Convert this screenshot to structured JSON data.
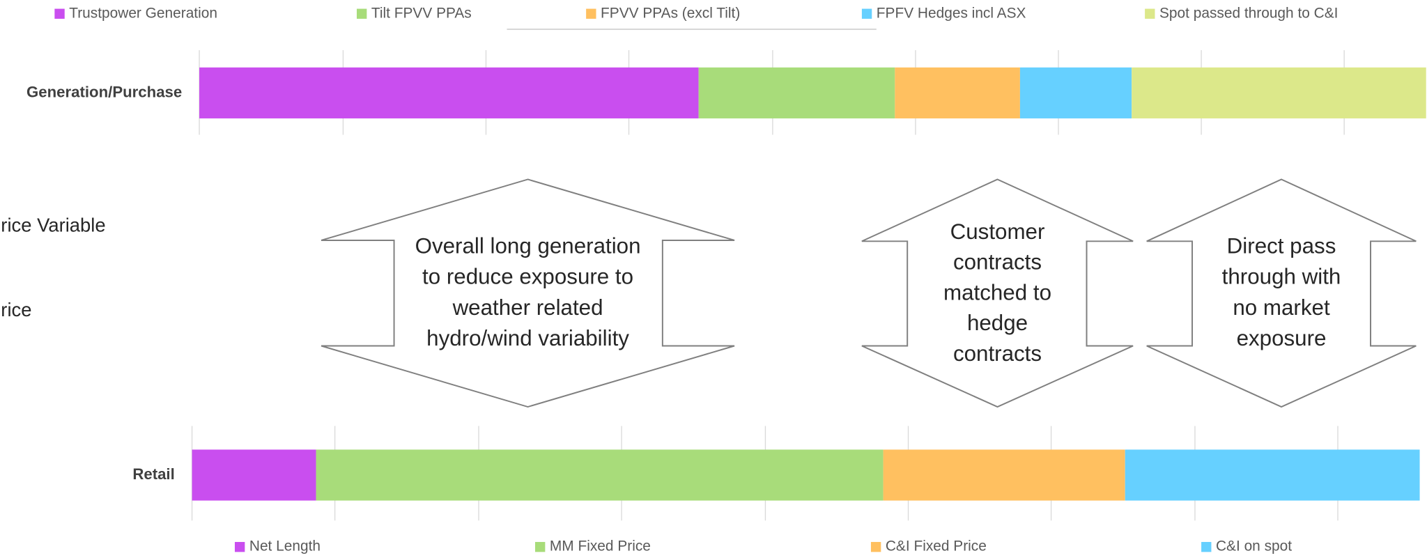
{
  "chart_data": [
    {
      "type": "bar",
      "orientation": "horizontal",
      "stacked": true,
      "categories": [
        "Generation/Purchase"
      ],
      "xlim": [
        0,
        100
      ],
      "series": [
        {
          "name": "Trustpower Generation",
          "color": "#c94eef",
          "values": [
            40.7
          ]
        },
        {
          "name": "Tilt FPVV PPAs",
          "color": "#a8dc7a",
          "values": [
            16.0
          ]
        },
        {
          "name": "FPVV PPAs (excl Tilt)",
          "color": "#ffc060",
          "values": [
            10.2
          ]
        },
        {
          "name": "FPFV Hedges incl ASX",
          "color": "#66d0ff",
          "values": [
            9.1
          ]
        },
        {
          "name": "Spot passed through to C&I",
          "color": "#dce88a",
          "values": [
            24.0
          ]
        }
      ]
    },
    {
      "type": "bar",
      "orientation": "horizontal",
      "stacked": true,
      "categories": [
        "Retail"
      ],
      "xlim": [
        0,
        100
      ],
      "series": [
        {
          "name": "Net Length",
          "color": "#c94eef",
          "values": [
            10.1
          ]
        },
        {
          "name": "MM Fixed Price",
          "color": "#a8dc7a",
          "values": [
            46.2
          ]
        },
        {
          "name": "C&I Fixed Price",
          "color": "#ffc060",
          "values": [
            19.7
          ]
        },
        {
          "name": "C&I on spot",
          "color": "#66d0ff",
          "values": [
            24.0
          ]
        }
      ]
    }
  ],
  "side_labels": [
    "Price Variable",
    "Price"
  ],
  "annotations": [
    {
      "lines": [
        "Overall long generation",
        "to reduce exposure to",
        "weather related",
        "hydro/wind variability"
      ]
    },
    {
      "lines": [
        "Customer",
        "contracts",
        "matched to",
        "hedge",
        "contracts"
      ]
    },
    {
      "lines": [
        "Direct pass",
        "through with",
        "no market",
        "exposure"
      ]
    }
  ]
}
